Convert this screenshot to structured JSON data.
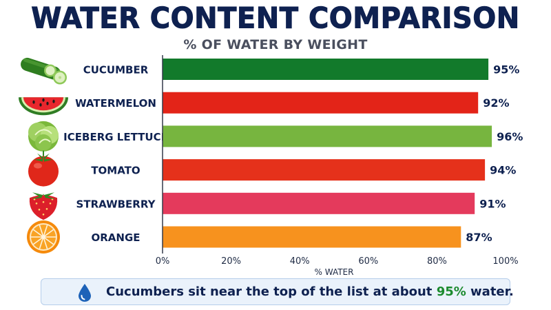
{
  "header": {
    "title": "WATER CONTENT COMPARISON",
    "subtitle": "% OF WATER BY WEIGHT"
  },
  "chart_data": {
    "type": "bar",
    "orientation": "horizontal",
    "title": "WATER CONTENT COMPARISON",
    "subtitle": "% OF WATER BY WEIGHT",
    "xlabel": "% WATER",
    "ylabel": "",
    "xlim": [
      0,
      100
    ],
    "x_ticks": [
      "0%",
      "20%",
      "40%",
      "60%",
      "80%",
      "100%"
    ],
    "x_tick_values": [
      0,
      20,
      40,
      60,
      80,
      100
    ],
    "categories": [
      "CUCUMBER",
      "WATERMELON",
      "ICEBERG LETTUCE",
      "TOMATO",
      "STRAWBERRY",
      "ORANGE"
    ],
    "values": [
      95,
      92,
      96,
      94,
      91,
      87
    ],
    "value_labels": [
      "95%",
      "92%",
      "96%",
      "94%",
      "91%",
      "87%"
    ],
    "colors": [
      "#127a2b",
      "#e32418",
      "#77b53f",
      "#e5311b",
      "#e43a5c",
      "#f7921e"
    ],
    "icons": [
      "cucumber-icon",
      "watermelon-icon",
      "lettuce-icon",
      "tomato-icon",
      "strawberry-icon",
      "orange-icon"
    ],
    "grid": false,
    "legend": "none"
  },
  "callout": {
    "icon": "water-drop-icon",
    "text_before": "Cucumbers sit near the top of the list at about ",
    "highlight": "95%",
    "text_after": " water.",
    "highlight_color": "#1b8a2e"
  }
}
